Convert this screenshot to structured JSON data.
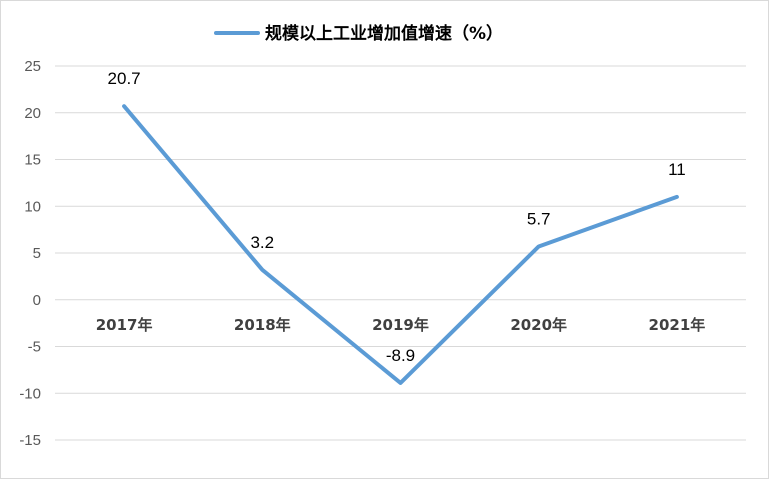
{
  "chart_data": {
    "type": "line",
    "title": "",
    "xlabel": "",
    "ylabel": "",
    "categories": [
      "2017年",
      "2018年",
      "2019年",
      "2020年",
      "2021年"
    ],
    "series": [
      {
        "name": "规模以上工业增加值增速（%）",
        "values": [
          20.7,
          3.2,
          -8.9,
          5.7,
          11
        ],
        "data_labels": [
          "20.7",
          "3.2",
          "-8.9",
          "5.7",
          "11"
        ],
        "color": "#5b9bd5"
      }
    ],
    "ylim": [
      -15,
      25
    ],
    "yticks": [
      25,
      20,
      15,
      10,
      5,
      0,
      -5,
      -10,
      -15
    ],
    "ytick_labels": [
      "25",
      "20",
      "15",
      "10",
      "5",
      "0",
      "-5",
      "-10",
      "-15"
    ],
    "grid": true,
    "legend_position": "top",
    "gridline_color": "#d9d9d9"
  }
}
